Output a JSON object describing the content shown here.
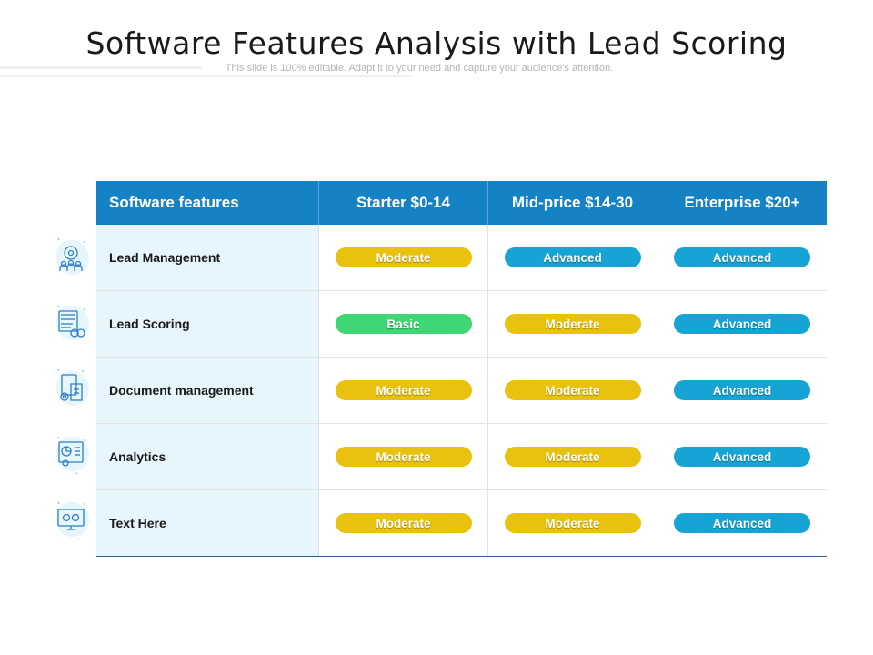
{
  "title": "Software Features Analysis with Lead Scoring",
  "subtitle": "This slide is 100% editable. Adapt it to your need and capture your audience's attention.",
  "colors": {
    "header": "#1682c6",
    "moderate": "#e8c20e",
    "advanced": "#15a4d3",
    "basic": "#3fd673",
    "feature_bg": "#e6f6fc"
  },
  "table": {
    "headers": [
      "Software features",
      "Starter $0-14",
      "Mid-price $14-30",
      "Enterprise $20+"
    ],
    "rows": [
      {
        "feature": "Lead Management",
        "icon": "team-gear-icon",
        "levels": [
          "Moderate",
          "Advanced",
          "Advanced"
        ]
      },
      {
        "feature": "Lead Scoring",
        "icon": "score-board-icon",
        "levels": [
          "Basic",
          "Moderate",
          "Advanced"
        ]
      },
      {
        "feature": "Document management",
        "icon": "document-gear-icon",
        "levels": [
          "Moderate",
          "Moderate",
          "Advanced"
        ]
      },
      {
        "feature": "Analytics",
        "icon": "analytics-chart-icon",
        "levels": [
          "Moderate",
          "Moderate",
          "Advanced"
        ]
      },
      {
        "feature": "Text Here",
        "icon": "monitor-gear-icon",
        "levels": [
          "Moderate",
          "Moderate",
          "Advanced"
        ]
      }
    ]
  }
}
